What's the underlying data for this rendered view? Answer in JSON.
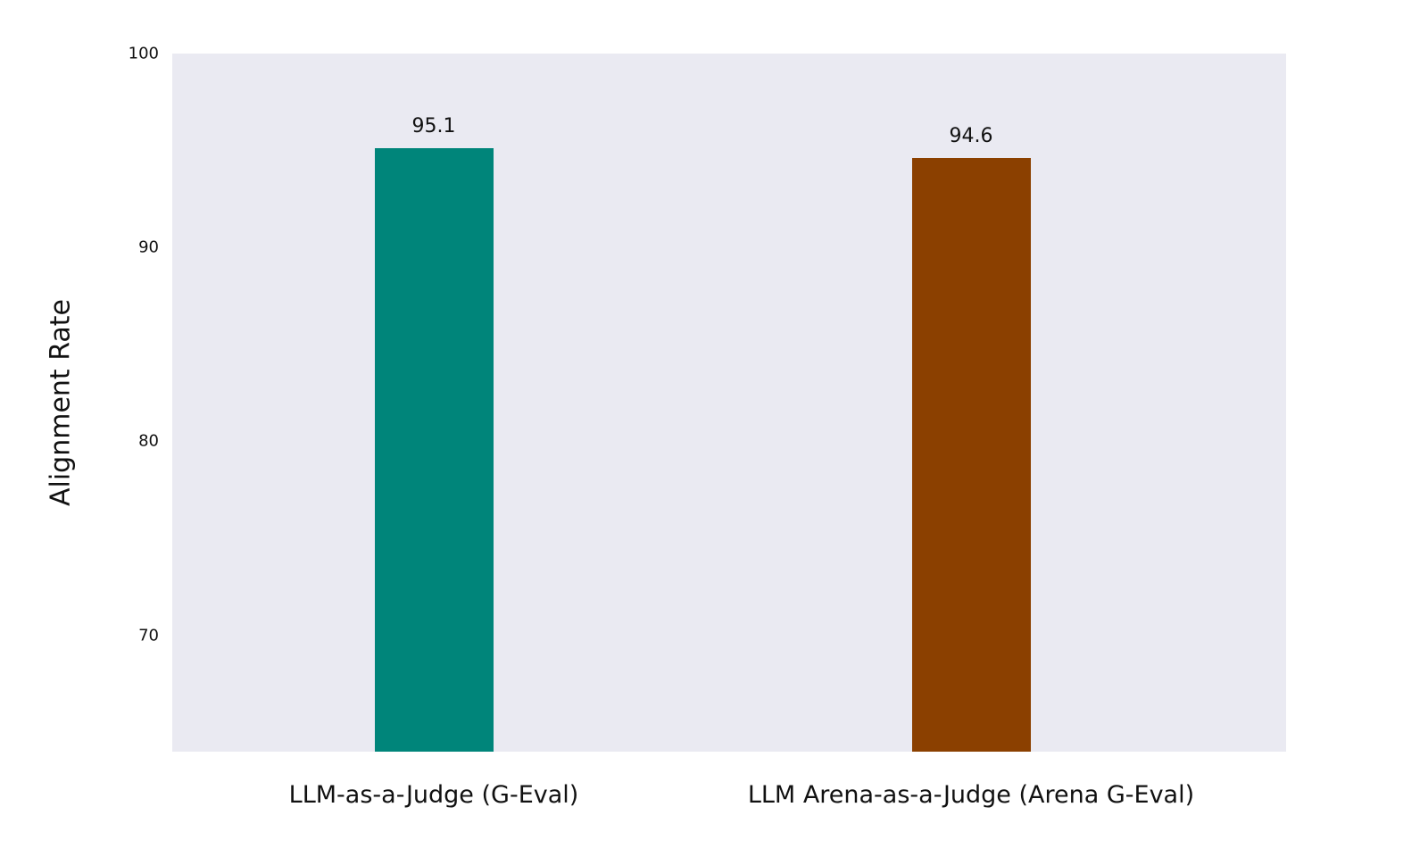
{
  "chart_data": {
    "type": "bar",
    "title": "",
    "xlabel": "",
    "ylabel": "Alignment Rate",
    "categories": [
      "LLM-as-a-Judge (G-Eval)",
      "LLM Arena-as-a-Judge (Arena G-Eval)"
    ],
    "values": [
      95.1,
      94.6
    ],
    "value_labels": [
      "95.1",
      "94.6"
    ],
    "colors": [
      "#00857a",
      "#8b4000"
    ],
    "ylim": [
      64,
      100
    ],
    "yticks": [
      "70",
      "80",
      "90",
      "100"
    ],
    "grid": false,
    "legend": null,
    "plot_background": "#eaeaf2"
  }
}
